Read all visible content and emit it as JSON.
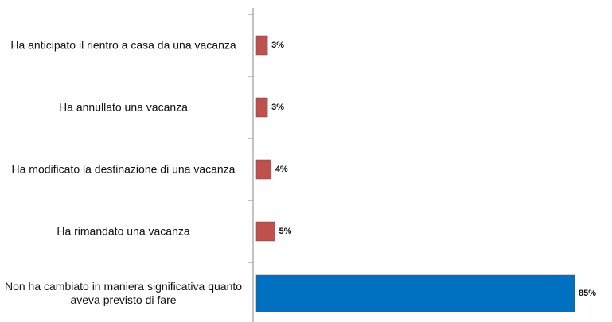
{
  "chart_data": {
    "type": "bar",
    "orientation": "horizontal",
    "categories": [
      "Ha anticipato il rientro a casa da una vacanza",
      "Ha annullato una vacanza",
      "Ha modificato la destinazione di una vacanza",
      "Ha rimandato una vacanza",
      "Non ha cambiato in maniera significativa quanto aveva previsto di fare"
    ],
    "values": [
      3,
      3,
      4,
      5,
      85
    ],
    "value_labels": [
      "3%",
      "3%",
      "4%",
      "5%",
      "85%"
    ],
    "colors": [
      "#c0504d",
      "#c0504d",
      "#c0504d",
      "#c0504d",
      "#0070c0"
    ]
  }
}
